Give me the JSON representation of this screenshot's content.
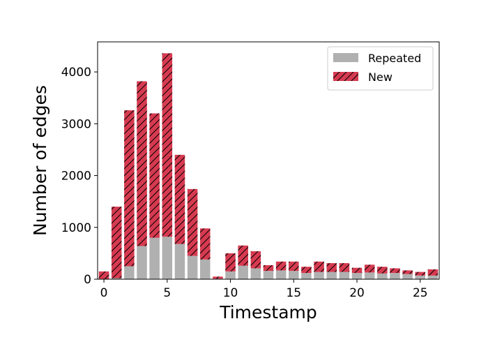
{
  "chart_data": {
    "type": "bar",
    "stacked": true,
    "xlabel": "Timestamp",
    "ylabel": "Number of edges",
    "x": [
      0,
      1,
      2,
      3,
      4,
      5,
      6,
      7,
      8,
      9,
      10,
      11,
      12,
      13,
      14,
      15,
      16,
      17,
      18,
      19,
      20,
      21,
      22,
      23,
      24,
      25,
      26
    ],
    "series": [
      {
        "name": "Repeated",
        "color": "#b0b0b0",
        "values": [
          0,
          20,
          250,
          640,
          800,
          820,
          680,
          450,
          380,
          10,
          150,
          260,
          210,
          160,
          170,
          160,
          120,
          140,
          140,
          140,
          120,
          130,
          110,
          120,
          100,
          70,
          70
        ]
      },
      {
        "name": "New",
        "color": "#d63a50",
        "hatch": "diagonal",
        "values": [
          150,
          1380,
          3010,
          3180,
          2400,
          3540,
          1720,
          1290,
          600,
          40,
          350,
          390,
          330,
          110,
          170,
          180,
          120,
          200,
          170,
          170,
          100,
          150,
          130,
          90,
          70,
          70,
          120
        ]
      }
    ],
    "xlim": [
      -0.5,
      26.5
    ],
    "ylim": [
      0,
      4580
    ],
    "xticks": [
      "0",
      "5",
      "10",
      "15",
      "20",
      "25"
    ],
    "yticks": [
      "0",
      "1000",
      "2000",
      "3000",
      "4000"
    ],
    "legend": {
      "position": "top-right",
      "entries": [
        "Repeated",
        "New"
      ]
    },
    "grid": false
  }
}
